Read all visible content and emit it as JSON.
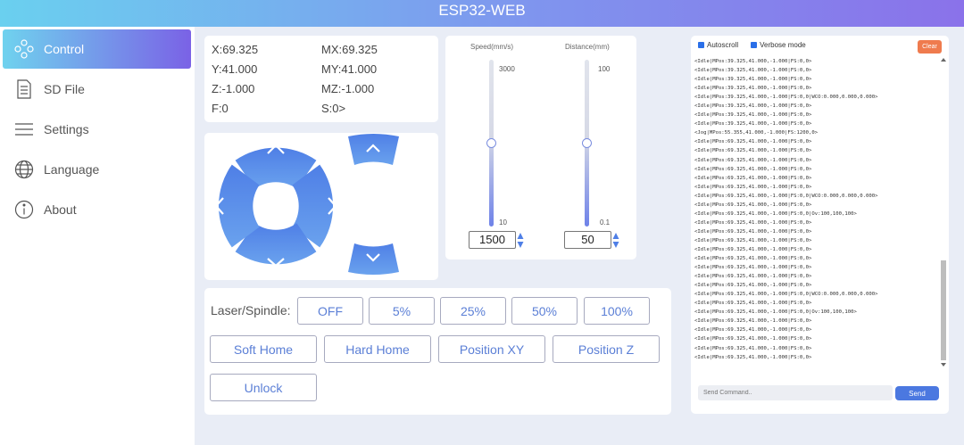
{
  "header": {
    "title": "ESP32-WEB"
  },
  "sidebar": {
    "items": [
      {
        "label": "Control",
        "icon": "control-icon"
      },
      {
        "label": "SD File",
        "icon": "file-icon"
      },
      {
        "label": "Settings",
        "icon": "menu-icon"
      },
      {
        "label": "Language",
        "icon": "globe-icon"
      },
      {
        "label": "About",
        "icon": "info-icon"
      }
    ]
  },
  "position": {
    "x": "X:69.325",
    "y": "Y:41.000",
    "z": "Z:-1.000",
    "f": "F:0",
    "mx": "MX:69.325",
    "my": "MY:41.000",
    "mz": "MZ:-1.000",
    "s": "S:0>"
  },
  "speed": {
    "label": "Speed(mm/s)",
    "max": "3000",
    "min": "10",
    "value": "1500",
    "fill": 0.5
  },
  "distance": {
    "label": "Distance(mm)",
    "max": "100",
    "min": "0.1",
    "value": "50",
    "fill": 0.5
  },
  "laser": {
    "label": "Laser/Spindle:",
    "buttons": [
      "OFF",
      "5%",
      "25%",
      "50%",
      "100%"
    ]
  },
  "actions": {
    "soft_home": "Soft Home",
    "hard_home": "Hard Home",
    "position_xy": "Position XY",
    "position_z": "Position Z",
    "unlock": "Unlock"
  },
  "console": {
    "autoscroll": "Autoscroll",
    "verbose": "Verbose mode",
    "clear": "Clear",
    "placeholder": "Send Command..",
    "send": "Send",
    "lines": [
      "<Idle|MPos:39.325,41.000,-1.000|FS:0,0>",
      "<Idle|MPos:39.325,41.000,-1.000|FS:0,0>",
      "<Idle|MPos:39.325,41.000,-1.000|FS:0,0>",
      "<Idle|MPos:39.325,41.000,-1.000|FS:0,0>",
      "<Idle|MPos:39.325,41.000,-1.000|FS:0,0|WCO:0.000,0.000,0.000>",
      "<Idle|MPos:39.325,41.000,-1.000|FS:0,0>",
      "<Idle|MPos:39.325,41.000,-1.000|FS:0,0>",
      "<Idle|MPos:39.325,41.000,-1.000|FS:0,0>",
      "<Jog|MPos:55.355,41.000,-1.000|FS:1200,0>",
      "<Idle|MPos:69.325,41.000,-1.000|FS:0,0>",
      "<Idle|MPos:69.325,41.000,-1.000|FS:0,0>",
      "<Idle|MPos:69.325,41.000,-1.000|FS:0,0>",
      "<Idle|MPos:69.325,41.000,-1.000|FS:0,0>",
      "<Idle|MPos:69.325,41.000,-1.000|FS:0,0>",
      "<Idle|MPos:69.325,41.000,-1.000|FS:0,0>",
      "<Idle|MPos:69.325,41.000,-1.000|FS:0,0|WCO:0.000,0.000,0.000>",
      "<Idle|MPos:69.325,41.000,-1.000|FS:0,0>",
      "<Idle|MPos:69.325,41.000,-1.000|FS:0,0|Ov:100,100,100>",
      "<Idle|MPos:69.325,41.000,-1.000|FS:0,0>",
      "<Idle|MPos:69.325,41.000,-1.000|FS:0,0>",
      "<Idle|MPos:69.325,41.000,-1.000|FS:0,0>",
      "<Idle|MPos:69.325,41.000,-1.000|FS:0,0>",
      "<Idle|MPos:69.325,41.000,-1.000|FS:0,0>",
      "<Idle|MPos:69.325,41.000,-1.000|FS:0,0>",
      "<Idle|MPos:69.325,41.000,-1.000|FS:0,0>",
      "<Idle|MPos:69.325,41.000,-1.000|FS:0,0>",
      "<Idle|MPos:69.325,41.000,-1.000|FS:0,0|WCO:0.000,0.000,0.000>",
      "<Idle|MPos:69.325,41.000,-1.000|FS:0,0>",
      "<Idle|MPos:69.325,41.000,-1.000|FS:0,0|Ov:100,100,100>",
      "<Idle|MPos:69.325,41.000,-1.000|FS:0,0>",
      "<Idle|MPos:69.325,41.000,-1.000|FS:0,0>",
      "<Idle|MPos:69.325,41.000,-1.000|FS:0,0>",
      "<Idle|MPos:69.325,41.000,-1.000|FS:0,0>",
      "<Idle|MPos:69.325,41.000,-1.000|FS:0,0>"
    ]
  },
  "colors": {
    "accent": "#4b78e0",
    "jog": "#5b8ee8",
    "clear": "#ef7b4e"
  }
}
